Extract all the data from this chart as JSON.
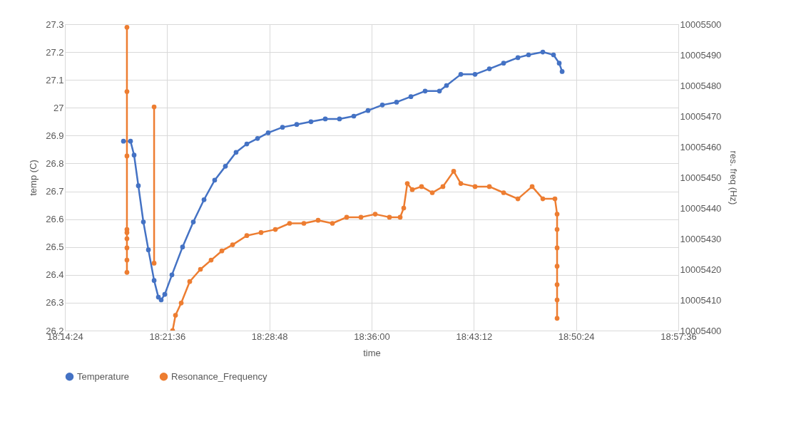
{
  "chart_data": {
    "type": "line",
    "xlabel": "time",
    "ylabel": "temp (C)",
    "y2label": "res. freq (Hz)",
    "xlim": [
      18.24,
      18.96
    ],
    "xticks": [
      {
        "value": 18.24,
        "label": "18:14:24"
      },
      {
        "value": 18.36,
        "label": "18:21:36"
      },
      {
        "value": 18.48,
        "label": "18:28:48"
      },
      {
        "value": 18.6,
        "label": "18:36:00"
      },
      {
        "value": 18.72,
        "label": "18:43:12"
      },
      {
        "value": 18.84,
        "label": "18:50:24"
      },
      {
        "value": 18.96,
        "label": "18:57:36"
      }
    ],
    "ylim": [
      26.2,
      27.3
    ],
    "yticks": [
      26.2,
      26.3,
      26.4,
      26.5,
      26.6,
      26.7,
      26.8,
      26.9,
      27,
      27.1,
      27.2,
      27.3
    ],
    "y2lim": [
      10005400,
      10005500
    ],
    "y2ticks": [
      10005400,
      10005410,
      10005420,
      10005430,
      10005440,
      10005450,
      10005460,
      10005470,
      10005480,
      10005490,
      10005500
    ],
    "grid": true,
    "legend": "bottom",
    "marker": "circle",
    "line_style": "solid",
    "series": [
      {
        "name": "Temperature",
        "color": "#4472c4",
        "axis": "y",
        "x": [
          18.3087,
          18.317,
          18.3212,
          18.3262,
          18.3321,
          18.338,
          18.3447,
          18.3497,
          18.353,
          18.3572,
          18.3656,
          18.3781,
          18.3907,
          18.4033,
          18.4158,
          18.4284,
          18.4409,
          18.4535,
          18.4661,
          18.4786,
          18.4954,
          18.5121,
          18.5288,
          18.5456,
          18.5623,
          18.5791,
          18.5958,
          18.6126,
          18.6293,
          18.6461,
          18.6628,
          18.6796,
          18.6879,
          18.7047,
          18.7214,
          18.7382,
          18.7549,
          18.7717,
          18.7842,
          18.801,
          18.8135,
          18.8202,
          18.8236
        ],
        "values": [
          26.88,
          26.88,
          26.83,
          26.72,
          26.59,
          26.49,
          26.38,
          26.32,
          26.31,
          26.33,
          26.4,
          26.5,
          26.59,
          26.67,
          26.74,
          26.79,
          26.84,
          26.87,
          26.89,
          26.91,
          26.93,
          26.94,
          26.95,
          26.96,
          26.96,
          26.97,
          26.99,
          27.01,
          27.02,
          27.04,
          27.06,
          27.06,
          27.08,
          27.12,
          27.12,
          27.14,
          27.16,
          27.18,
          27.19,
          27.2,
          27.19,
          27.16,
          27.13
        ]
      },
      {
        "name": "Resonance_Frequency",
        "color": "#ed7d31",
        "axis": "y2",
        "x": [
          18.3128,
          18.3128,
          18.3128,
          18.3128,
          18.3128,
          18.3128,
          18.3128,
          18.3128,
          18.3128,
          18.3288,
          18.3447,
          18.3447,
          18.3556,
          18.3664,
          18.3698,
          18.3765,
          18.3865,
          18.3991,
          18.4116,
          18.4242,
          18.4368,
          18.4535,
          18.4702,
          18.487,
          18.5037,
          18.5205,
          18.5372,
          18.554,
          18.5707,
          18.5875,
          18.6042,
          18.6209,
          18.6335,
          18.6377,
          18.6419,
          18.6477,
          18.6586,
          18.6712,
          18.6837,
          18.6963,
          18.7047,
          18.7214,
          18.7382,
          18.7549,
          18.7717,
          18.7884,
          18.801,
          18.8152,
          18.8177,
          18.8177,
          18.8177,
          18.8177,
          18.8177,
          18.8177,
          18.8177
        ],
        "values": [
          10005432,
          10005433,
          10005430,
          10005427,
          10005423,
          10005419,
          10005457,
          10005478,
          10005499,
          null,
          10005473,
          10005422,
          null,
          10005400,
          10005405,
          10005409,
          10005416,
          10005420,
          10005423,
          10005426,
          10005428,
          10005431,
          10005432,
          10005433,
          10005435,
          10005435,
          10005436,
          10005435,
          10005437,
          10005437,
          10005438,
          10005437,
          10005437,
          10005440,
          10005448,
          10005446,
          10005447,
          10005445,
          10005447,
          10005452,
          10005448,
          10005447,
          10005447,
          10005445,
          10005443,
          10005447,
          10005443,
          10005443,
          10005438,
          10005433,
          10005427,
          10005421,
          10005415,
          10005410,
          10005404
        ]
      }
    ]
  }
}
